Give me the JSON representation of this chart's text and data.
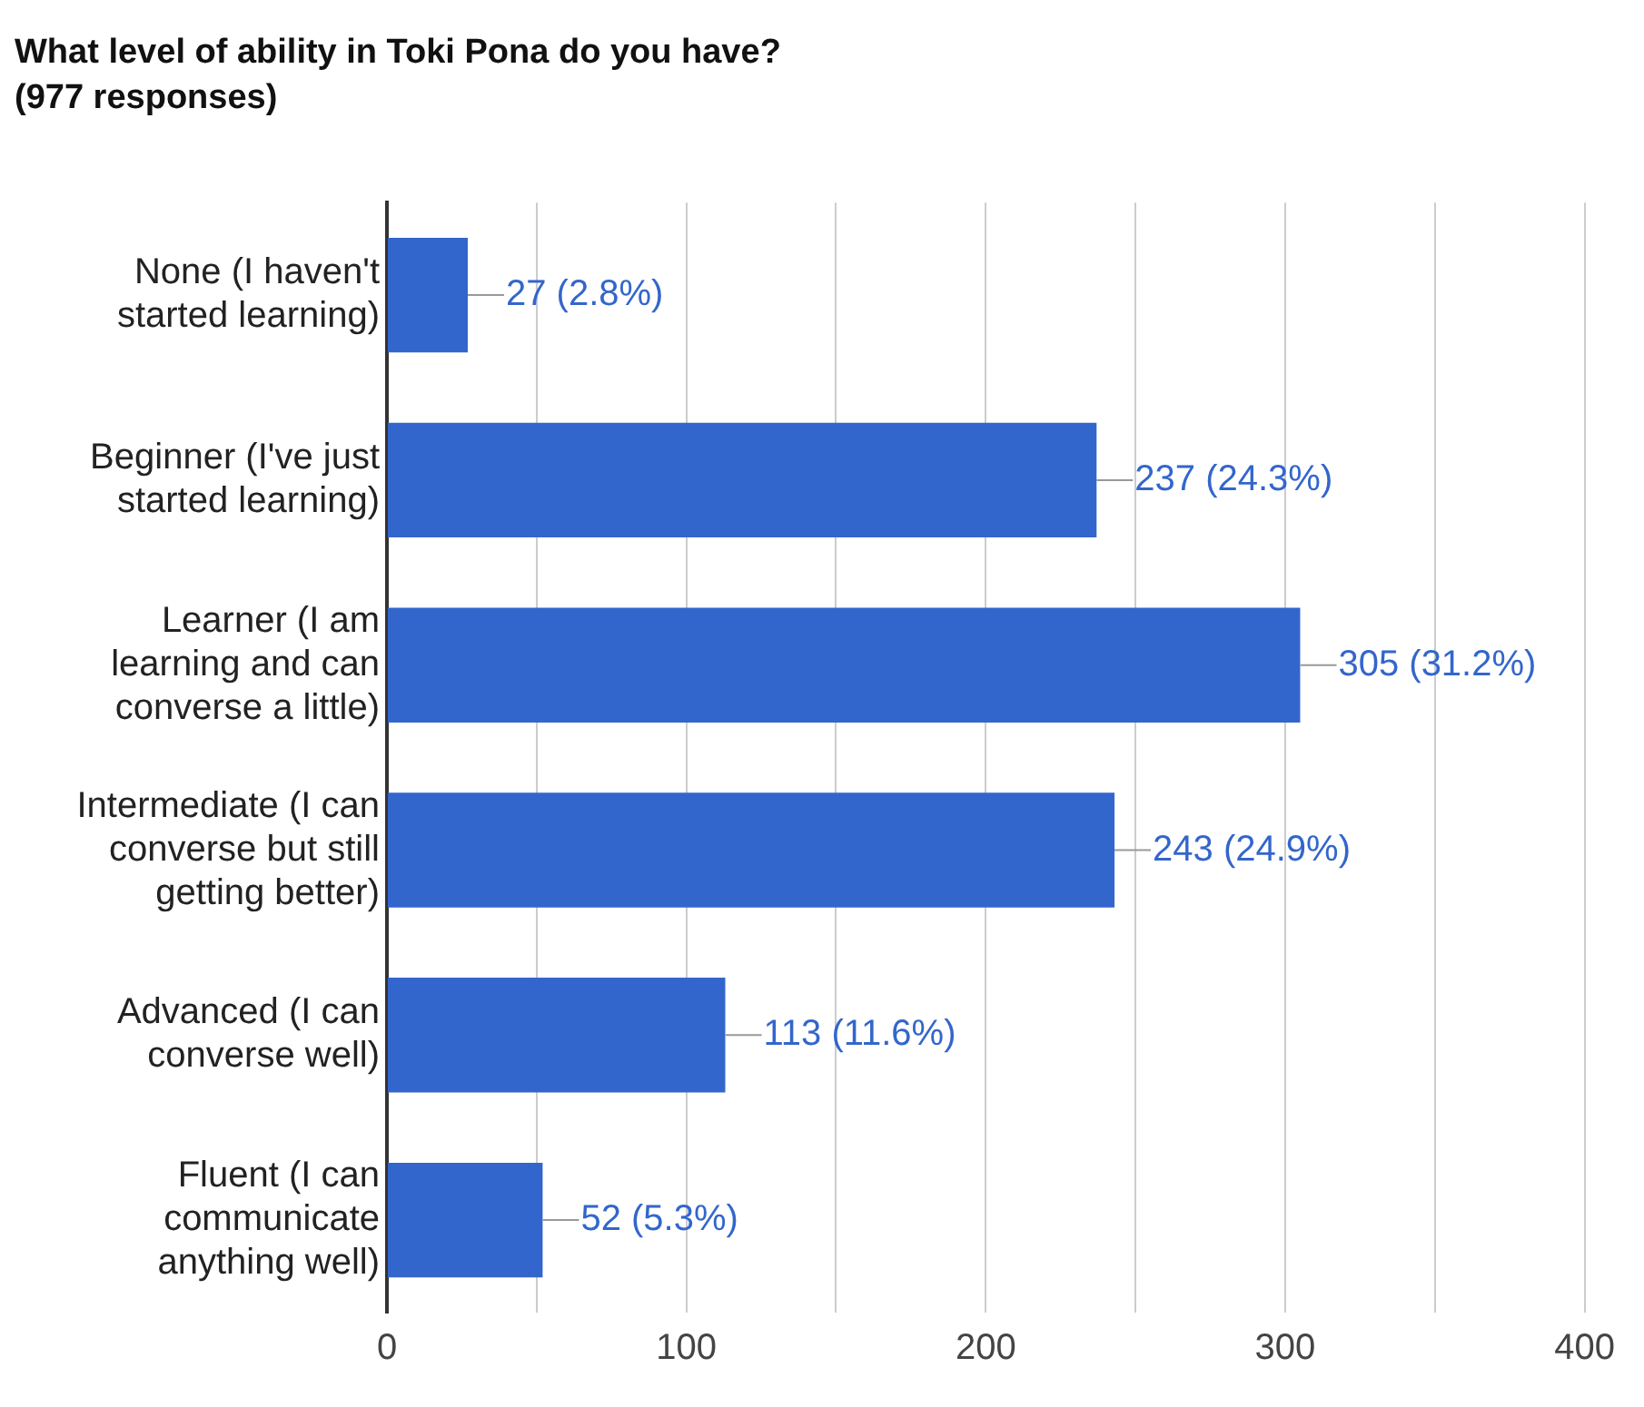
{
  "chart_data": {
    "type": "bar",
    "orientation": "horizontal",
    "title": "What level of ability in Toki Pona do you have?",
    "subtitle": "(977 responses)",
    "categories": [
      "None (I haven't started learning)",
      "Beginner (I've just started learning)",
      "Learner (I am learning and can converse a little)",
      "Intermediate (I can converse but still getting better)",
      "Advanced (I can converse well)",
      "Fluent (I can communicate anything well)"
    ],
    "values": [
      27,
      237,
      305,
      243,
      113,
      52
    ],
    "value_labels": [
      "27 (2.8%)",
      "237 (24.3%)",
      "305 (31.2%)",
      "243 (24.9%)",
      "113 (11.6%)",
      "52 (5.3%)"
    ],
    "color": "#3366cc",
    "xlim": [
      0,
      400
    ],
    "xticks": [
      0,
      {
        "value": 50,
        "label": null
      },
      100,
      {
        "value": 150,
        "label": null
      },
      200,
      {
        "value": 250,
        "label": null
      },
      300,
      {
        "value": 350,
        "label": null
      },
      400
    ],
    "grid": "x",
    "legend": false
  }
}
